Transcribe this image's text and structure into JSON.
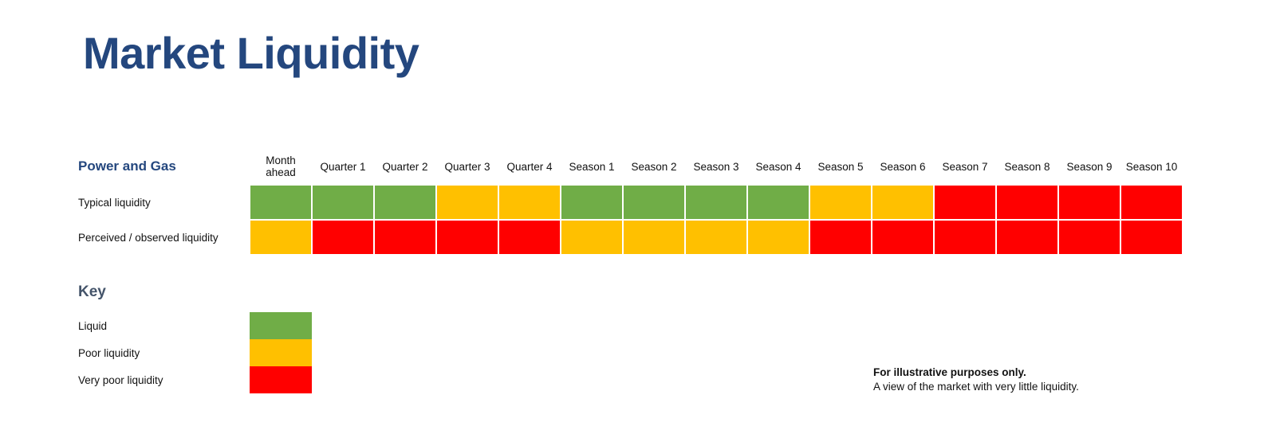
{
  "title": "Market Liquidity",
  "table": {
    "section_label": "Power and Gas",
    "columns": [
      "Month ahead",
      "Quarter 1",
      "Quarter 2",
      "Quarter 3",
      "Quarter 4",
      "Season 1",
      "Season 2",
      "Season 3",
      "Season 4",
      "Season 5",
      "Season 6",
      "Season 7",
      "Season 8",
      "Season 9",
      "Season 10"
    ],
    "rows": [
      {
        "label": "Typical liquidity",
        "cells": [
          "liquid",
          "liquid",
          "liquid",
          "poor",
          "poor",
          "liquid",
          "liquid",
          "liquid",
          "liquid",
          "poor",
          "poor",
          "very_poor",
          "very_poor",
          "very_poor",
          "very_poor"
        ]
      },
      {
        "label": "Perceived / observed liquidity",
        "cells": [
          "poor",
          "very_poor",
          "very_poor",
          "very_poor",
          "very_poor",
          "poor",
          "poor",
          "poor",
          "poor",
          "very_poor",
          "very_poor",
          "very_poor",
          "very_poor",
          "very_poor",
          "very_poor"
        ]
      }
    ]
  },
  "key": {
    "heading": "Key",
    "items": [
      {
        "label": "Liquid",
        "status": "liquid"
      },
      {
        "label": "Poor liquidity",
        "status": "poor"
      },
      {
        "label": "Very poor liquidity",
        "status": "very_poor"
      }
    ]
  },
  "footnote": {
    "bold_line": "For illustrative purposes only.",
    "normal_line": "A view of the market with very little liquidity."
  },
  "colors": {
    "liquid": "#70AD47",
    "poor": "#FFC000",
    "very_poor": "#FF0000",
    "heading_navy": "#24477E",
    "key_heading_slate": "#44546A",
    "text": "#111111",
    "gridline": "#FFFFFF"
  },
  "chart_data": {
    "type": "heatmap",
    "title": "Market Liquidity",
    "group_label": "Power and Gas",
    "x_categories": [
      "Month ahead",
      "Quarter 1",
      "Quarter 2",
      "Quarter 3",
      "Quarter 4",
      "Season 1",
      "Season 2",
      "Season 3",
      "Season 4",
      "Season 5",
      "Season 6",
      "Season 7",
      "Season 8",
      "Season 9",
      "Season 10"
    ],
    "y_categories": [
      "Typical liquidity",
      "Perceived / observed liquidity"
    ],
    "values": [
      [
        "liquid",
        "liquid",
        "liquid",
        "poor",
        "poor",
        "liquid",
        "liquid",
        "liquid",
        "liquid",
        "poor",
        "poor",
        "very_poor",
        "very_poor",
        "very_poor",
        "very_poor"
      ],
      [
        "poor",
        "very_poor",
        "very_poor",
        "very_poor",
        "very_poor",
        "poor",
        "poor",
        "poor",
        "poor",
        "very_poor",
        "very_poor",
        "very_poor",
        "very_poor",
        "very_poor",
        "very_poor"
      ]
    ],
    "value_labels": {
      "liquid": "Liquid",
      "poor": "Poor liquidity",
      "very_poor": "Very poor liquidity"
    },
    "legend": [
      {
        "label": "Liquid",
        "color": "#70AD47"
      },
      {
        "label": "Poor liquidity",
        "color": "#FFC000"
      },
      {
        "label": "Very poor liquidity",
        "color": "#FF0000"
      }
    ],
    "legend_position": "bottom-left",
    "grid": true,
    "annotations": [
      "For illustrative purposes only.",
      "A view of the market with very little liquidity."
    ]
  }
}
